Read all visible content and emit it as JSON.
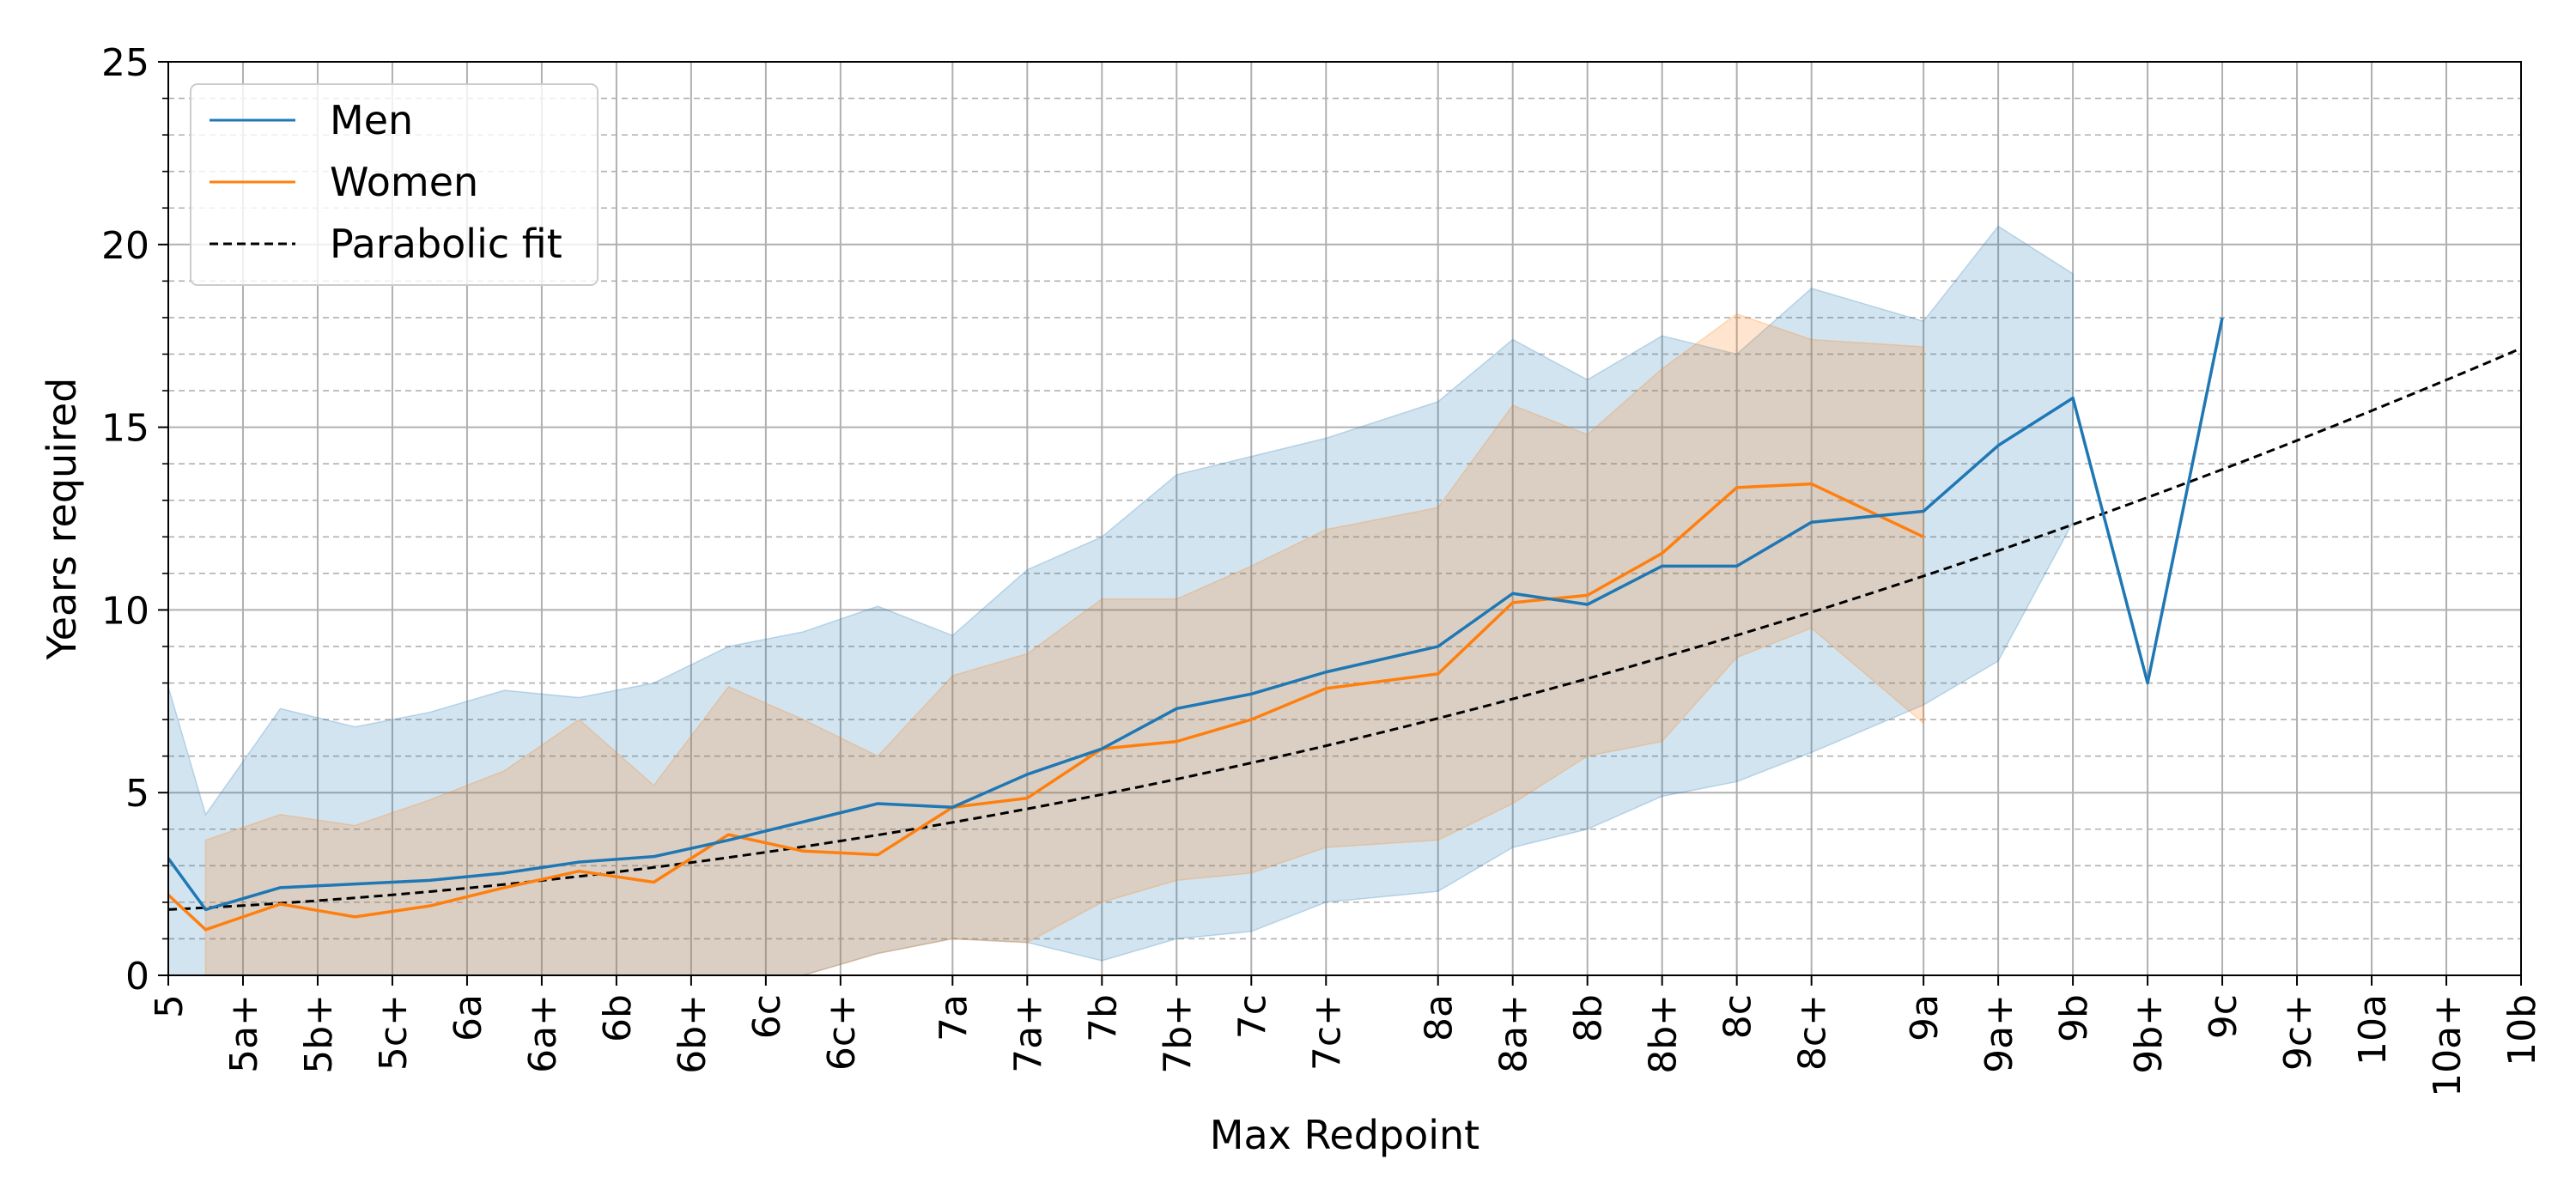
{
  "chart_data": {
    "type": "line",
    "xlabel": "Max Redpoint",
    "ylabel": "Years required",
    "ylim": [
      0,
      25
    ],
    "yticks": [
      0,
      5,
      10,
      15,
      20,
      25
    ],
    "grid": true,
    "legend_position": "top-left",
    "x_ticks": [
      {
        "label": "5",
        "pos": 0
      },
      {
        "label": "5a+",
        "pos": 1
      },
      {
        "label": "5b+",
        "pos": 2
      },
      {
        "label": "5c+",
        "pos": 3
      },
      {
        "label": "6a",
        "pos": 4
      },
      {
        "label": "6a+",
        "pos": 5
      },
      {
        "label": "6b",
        "pos": 6
      },
      {
        "label": "6b+",
        "pos": 7
      },
      {
        "label": "6c",
        "pos": 8
      },
      {
        "label": "6c+",
        "pos": 9
      },
      {
        "label": "7a",
        "pos": 10.5
      },
      {
        "label": "7a+",
        "pos": 11.5
      },
      {
        "label": "7b",
        "pos": 12.5
      },
      {
        "label": "7b+",
        "pos": 13.5
      },
      {
        "label": "7c",
        "pos": 14.5
      },
      {
        "label": "7c+",
        "pos": 15.5
      },
      {
        "label": "8a",
        "pos": 17
      },
      {
        "label": "8a+",
        "pos": 18
      },
      {
        "label": "8b",
        "pos": 19
      },
      {
        "label": "8b+",
        "pos": 20
      },
      {
        "label": "8c",
        "pos": 21
      },
      {
        "label": "8c+",
        "pos": 22
      },
      {
        "label": "9a",
        "pos": 23.5
      },
      {
        "label": "9a+",
        "pos": 24.5
      },
      {
        "label": "9b",
        "pos": 25.5
      },
      {
        "label": "9b+",
        "pos": 26.5
      },
      {
        "label": "9c",
        "pos": 27.5
      },
      {
        "label": "9c+",
        "pos": 28.5
      },
      {
        "label": "10a",
        "pos": 29.5
      },
      {
        "label": "10a+",
        "pos": 30.5
      },
      {
        "label": "10b",
        "pos": 31.5
      }
    ],
    "series": [
      {
        "name": "Men",
        "color": "#1f77b4",
        "points": [
          [
            0,
            3.2
          ],
          [
            0.5,
            1.8
          ],
          [
            1.5,
            2.4
          ],
          [
            2.5,
            2.5
          ],
          [
            3.5,
            2.6
          ],
          [
            4.5,
            2.8
          ],
          [
            5.5,
            3.1
          ],
          [
            6.5,
            3.25
          ],
          [
            7.5,
            3.7
          ],
          [
            8.5,
            4.2
          ],
          [
            9.5,
            4.7
          ],
          [
            10.5,
            4.6
          ],
          [
            11.5,
            5.5
          ],
          [
            12.5,
            6.2
          ],
          [
            13.5,
            7.3
          ],
          [
            14.5,
            7.7
          ],
          [
            15.5,
            8.3
          ],
          [
            17,
            9
          ],
          [
            18,
            10.45
          ],
          [
            19,
            10.15
          ],
          [
            20,
            11.2
          ],
          [
            21,
            11.2
          ],
          [
            22,
            12.4
          ],
          [
            23.5,
            12.7
          ],
          [
            24.5,
            14.5
          ],
          [
            25.5,
            15.8
          ],
          [
            26.5,
            8
          ],
          [
            27.5,
            18
          ]
        ],
        "band_upper": [
          [
            0,
            7.9
          ],
          [
            0.5,
            4.4
          ],
          [
            1.5,
            7.3
          ],
          [
            2.5,
            6.8
          ],
          [
            3.5,
            7.2
          ],
          [
            4.5,
            7.8
          ],
          [
            5.5,
            7.6
          ],
          [
            6.5,
            8
          ],
          [
            7.5,
            9
          ],
          [
            8.5,
            9.4
          ],
          [
            9.5,
            10.1
          ],
          [
            10.5,
            9.3
          ],
          [
            11.5,
            11.1
          ],
          [
            12.5,
            12
          ],
          [
            13.5,
            13.7
          ],
          [
            14.5,
            14.2
          ],
          [
            15.5,
            14.7
          ],
          [
            17,
            15.7
          ],
          [
            18,
            17.4
          ],
          [
            19,
            16.3
          ],
          [
            20,
            17.5
          ],
          [
            21,
            17
          ],
          [
            22,
            18.8
          ],
          [
            23.5,
            17.9
          ],
          [
            24.5,
            20.5
          ],
          [
            25.5,
            19.2
          ]
        ],
        "band_lower": [
          [
            0,
            0
          ],
          [
            0.5,
            0
          ],
          [
            1.5,
            0
          ],
          [
            2.5,
            0
          ],
          [
            3.5,
            0
          ],
          [
            4.5,
            0
          ],
          [
            5.5,
            0
          ],
          [
            6.5,
            0
          ],
          [
            7.5,
            0
          ],
          [
            8.5,
            0
          ],
          [
            9.5,
            0.6
          ],
          [
            10.5,
            1
          ],
          [
            11.5,
            0.9
          ],
          [
            12.5,
            0.4
          ],
          [
            13.5,
            1
          ],
          [
            14.5,
            1.2
          ],
          [
            15.5,
            2
          ],
          [
            17,
            2.3
          ],
          [
            18,
            3.5
          ],
          [
            19,
            4
          ],
          [
            20,
            4.9
          ],
          [
            21,
            5.3
          ],
          [
            22,
            6.1
          ],
          [
            23.5,
            7.4
          ],
          [
            24.5,
            8.6
          ],
          [
            25.5,
            12.4
          ]
        ]
      },
      {
        "name": "Women",
        "color": "#ff7f0e",
        "points": [
          [
            0,
            2.2
          ],
          [
            0.5,
            1.25
          ],
          [
            1.5,
            1.95
          ],
          [
            2.5,
            1.6
          ],
          [
            3.5,
            1.9
          ],
          [
            4.5,
            2.4
          ],
          [
            5.5,
            2.85
          ],
          [
            6.5,
            2.55
          ],
          [
            7.5,
            3.85
          ],
          [
            8.5,
            3.4
          ],
          [
            9.5,
            3.3
          ],
          [
            10.5,
            4.6
          ],
          [
            11.5,
            4.85
          ],
          [
            12.5,
            6.2
          ],
          [
            13.5,
            6.4
          ],
          [
            14.5,
            7
          ],
          [
            15.5,
            7.85
          ],
          [
            17,
            8.25
          ],
          [
            18,
            10.2
          ],
          [
            19,
            10.4
          ],
          [
            20,
            11.55
          ],
          [
            21,
            13.35
          ],
          [
            22,
            13.45
          ],
          [
            23.5,
            12
          ]
        ],
        "band_upper": [
          [
            0.5,
            3.7
          ],
          [
            1.5,
            4.4
          ],
          [
            2.5,
            4.1
          ],
          [
            3.5,
            4.8
          ],
          [
            4.5,
            5.6
          ],
          [
            5.5,
            7
          ],
          [
            6.5,
            5.2
          ],
          [
            7.5,
            7.9
          ],
          [
            8.5,
            7
          ],
          [
            9.5,
            6
          ],
          [
            10.5,
            8.2
          ],
          [
            11.5,
            8.8
          ],
          [
            12.5,
            10.3
          ],
          [
            13.5,
            10.3
          ],
          [
            14.5,
            11.2
          ],
          [
            15.5,
            12.2
          ],
          [
            17,
            12.8
          ],
          [
            18,
            15.6
          ],
          [
            19,
            14.8
          ],
          [
            20,
            16.6
          ],
          [
            21,
            18.1
          ],
          [
            22,
            17.4
          ],
          [
            23.5,
            17.2
          ]
        ],
        "band_lower": [
          [
            0.5,
            0
          ],
          [
            1.5,
            0
          ],
          [
            2.5,
            0
          ],
          [
            3.5,
            0
          ],
          [
            4.5,
            0
          ],
          [
            5.5,
            0
          ],
          [
            6.5,
            0
          ],
          [
            7.5,
            0
          ],
          [
            8.5,
            0
          ],
          [
            9.5,
            0.6
          ],
          [
            10.5,
            1
          ],
          [
            11.5,
            0.9
          ],
          [
            12.5,
            2
          ],
          [
            13.5,
            2.6
          ],
          [
            14.5,
            2.8
          ],
          [
            15.5,
            3.5
          ],
          [
            17,
            3.7
          ],
          [
            18,
            4.7
          ],
          [
            19,
            6
          ],
          [
            20,
            6.4
          ],
          [
            21,
            8.7
          ],
          [
            22,
            9.5
          ],
          [
            23.5,
            6.9
          ]
        ]
      },
      {
        "name": "Parabolic fit",
        "color": "#000000",
        "dash": true,
        "fit": {
          "a": 0.0124,
          "b": 0.097,
          "c": 1.8
        }
      }
    ]
  },
  "legend": {
    "men": "Men",
    "women": "Women",
    "fit": "Parabolic fit"
  }
}
